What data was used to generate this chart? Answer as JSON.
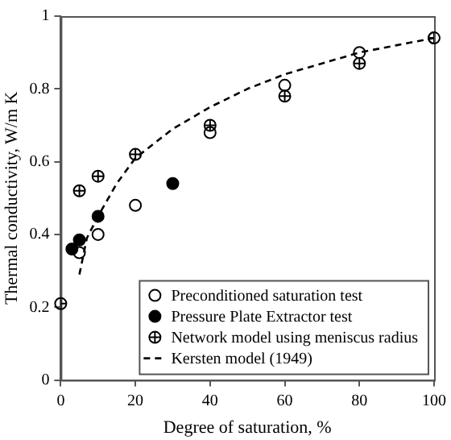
{
  "chart_data": {
    "type": "scatter",
    "xlabel": "Degree of saturation, %",
    "ylabel": "Thermal conductivity, W/m K",
    "xlim": [
      0,
      100
    ],
    "ylim": [
      0,
      1
    ],
    "xticks": [
      0,
      20,
      40,
      60,
      80,
      100
    ],
    "yticks": [
      0,
      0.2,
      0.4,
      0.6,
      0.8,
      1
    ],
    "grid": false,
    "legend": "bottom right",
    "series": [
      {
        "name": "Preconditioned saturation test",
        "color": "#000000",
        "marker": "circle-open",
        "x": [
          5,
          10,
          20,
          40,
          60,
          80,
          100
        ],
        "values": [
          0.35,
          0.4,
          0.48,
          0.68,
          0.81,
          0.9,
          0.94
        ]
      },
      {
        "name": "Pressure Plate Extractor test",
        "color": "#000000",
        "marker": "circle",
        "x": [
          3,
          5,
          10,
          30
        ],
        "values": [
          0.36,
          0.385,
          0.45,
          0.54
        ]
      },
      {
        "name": "Network model using meniscus radius",
        "color": "#000000",
        "x": [
          0,
          5,
          10,
          20,
          40,
          60,
          80,
          100
        ],
        "values": [
          0.21,
          0.52,
          0.56,
          0.62,
          0.7,
          0.78,
          0.87,
          0.94
        ]
      },
      {
        "name": "Kersten model (1949)",
        "type": "line",
        "color": "#000000",
        "marker": "none",
        "line_style": "dashed",
        "x": [
          5,
          7,
          10,
          15,
          20,
          30,
          40,
          50,
          60,
          70,
          80,
          90,
          100
        ],
        "values": [
          0.29,
          0.39,
          0.45,
          0.54,
          0.61,
          0.69,
          0.75,
          0.8,
          0.84,
          0.87,
          0.9,
          0.92,
          0.94
        ]
      }
    ]
  }
}
